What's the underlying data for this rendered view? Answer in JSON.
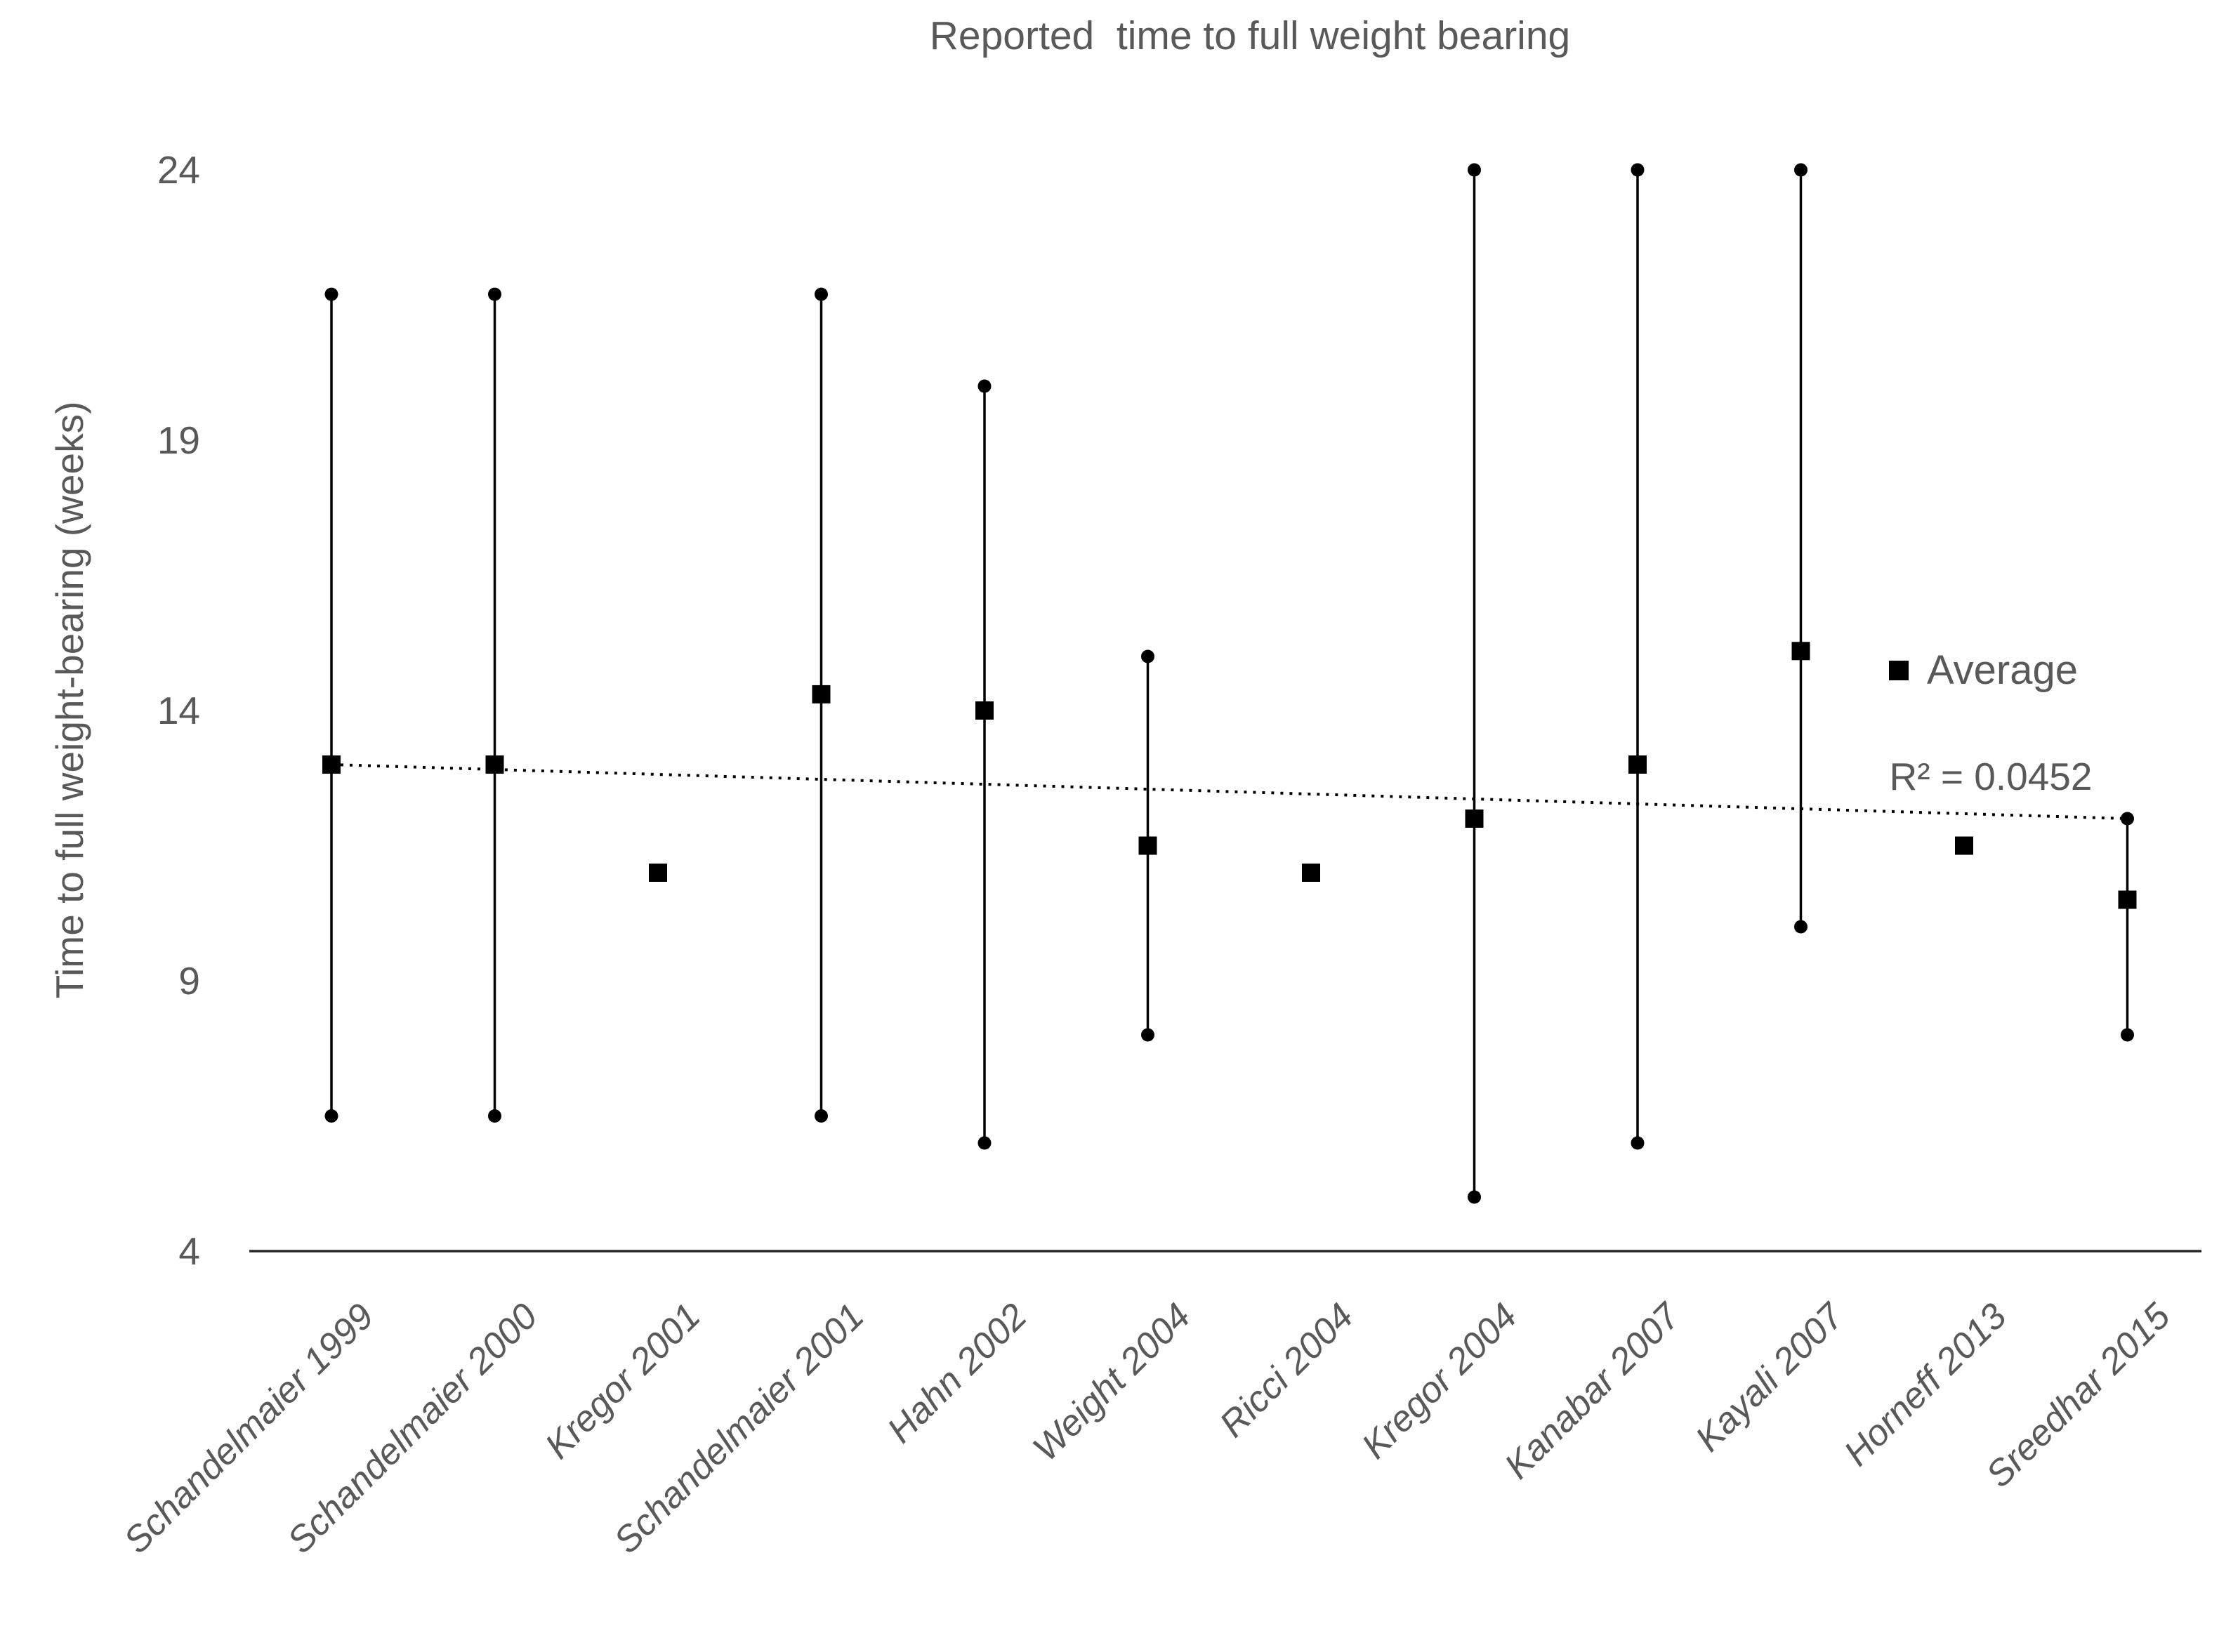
{
  "title": "Reported  time to full weight bearing",
  "legend": {
    "label": "Average"
  },
  "annotation": {
    "r_squared_text": "R² = 0.0452"
  },
  "y_axis": {
    "label": "Time to full weight-bearing (weeks)"
  },
  "colors": {
    "marker": "#000000",
    "text": "#595959",
    "axis": "#262626"
  },
  "chart_data": {
    "type": "scatter",
    "title": "Reported  time to full weight bearing",
    "xlabel": "",
    "ylabel": "Time to full weight-bearing (weeks)",
    "ylim": [
      4,
      24
    ],
    "yticks": [
      24,
      19,
      14,
      9,
      4
    ],
    "grid": false,
    "legend_position": "right",
    "legend_entries": [
      "Average"
    ],
    "categories": [
      "Schandelmaier 1999",
      "Schandelmaier 2000",
      "Kregor 2001",
      "Schandelmaier 2001",
      "Hahn 2002",
      "Weight 2004",
      "Ricci 2004",
      "Kregor 2004",
      "Kanabar 2007",
      "Kayali 2007",
      "Horneff 2013",
      "Sreedhar 2015"
    ],
    "series": [
      {
        "name": "Average",
        "marker": "filled-square",
        "values": [
          13,
          13,
          11,
          14.3,
          14,
          11.5,
          11,
          12,
          13,
          15.1,
          11.5,
          10.5
        ]
      },
      {
        "name": "Minimum",
        "marker": "filled-circle",
        "values": [
          6.5,
          6.5,
          null,
          6.5,
          6,
          8,
          null,
          5,
          6,
          10,
          null,
          8
        ]
      },
      {
        "name": "Maximum",
        "marker": "filled-circle",
        "values": [
          21.7,
          21.7,
          null,
          21.7,
          20,
          15,
          null,
          24,
          24,
          24,
          null,
          12
        ]
      }
    ],
    "trendline": {
      "type": "linear",
      "style": "dotted",
      "start_value": 13,
      "end_value": 12,
      "r_squared": 0.0452
    }
  }
}
